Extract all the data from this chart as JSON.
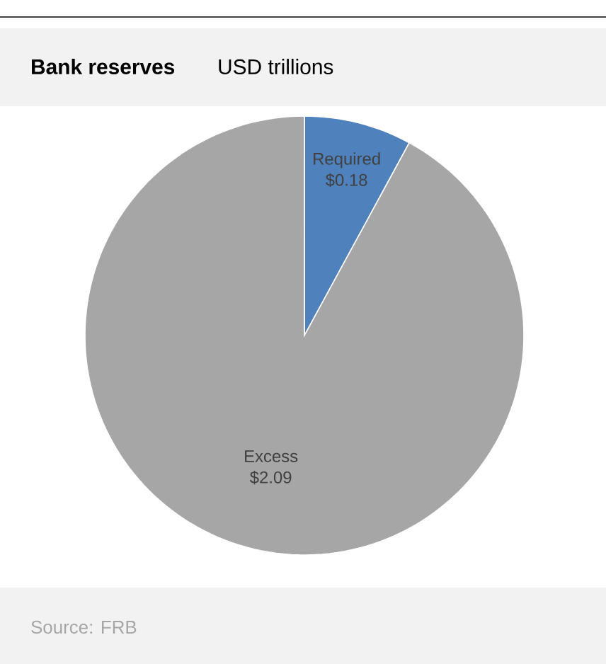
{
  "chart_data": {
    "type": "pie",
    "title": "Bank reserves",
    "subtitle": "USD trillions",
    "categories": [
      "Required",
      "Excess"
    ],
    "values": [
      0.18,
      2.09
    ],
    "value_labels": [
      "$0.18",
      "$2.09"
    ],
    "colors": [
      "#4f81bd",
      "#a6a6a6"
    ],
    "annotations": [
      "Source: FRB"
    ]
  }
}
